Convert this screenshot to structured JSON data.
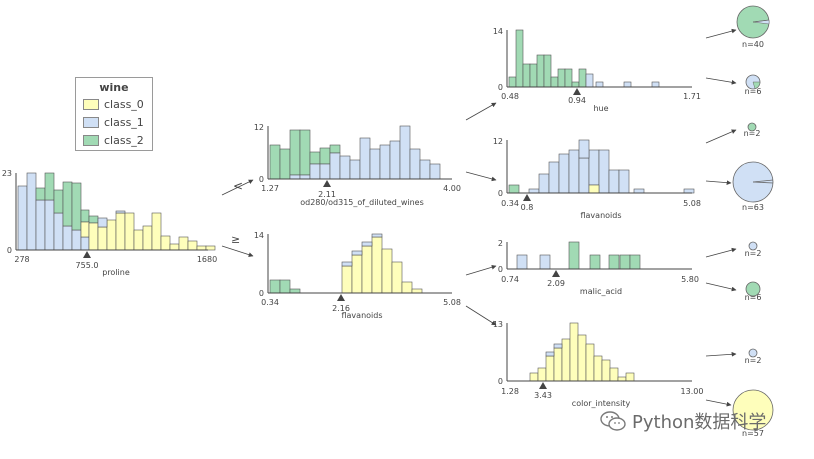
{
  "legend": {
    "title": "wine",
    "items": [
      {
        "label": "class_0",
        "color": "#fefebb"
      },
      {
        "label": "class_1",
        "color": "#d0e0f5"
      },
      {
        "label": "class_2",
        "color": "#a1dab4"
      }
    ]
  },
  "edges": {
    "less": "<",
    "ge": "≥"
  },
  "nodes": {
    "root": {
      "feature": "proline",
      "xmin": "278",
      "xmax": "1680",
      "split": "755.0",
      "ymax": "23",
      "ymin": "0"
    },
    "left": {
      "feature": "od280/od315_of_diluted_wines",
      "xmin": "1.27",
      "xmax": "4.00",
      "split": "2.11",
      "ymax": "12",
      "ymin": "0"
    },
    "right": {
      "feature": "flavanoids",
      "xmin": "0.34",
      "xmax": "5.08",
      "split": "2.16",
      "ymax": "14",
      "ymin": "0"
    },
    "ll": {
      "feature": "hue",
      "xmin": "0.48",
      "xmax": "1.71",
      "split": "0.94",
      "ymax": "14",
      "ymin": "0"
    },
    "lr": {
      "feature": "flavanoids",
      "xmin": "0.34",
      "xmax": "5.08",
      "split": "0.8",
      "ymax": "12",
      "ymin": "0"
    },
    "rl": {
      "feature": "malic_acid",
      "xmin": "0.74",
      "xmax": "5.80",
      "split": "2.09",
      "ymax": "2",
      "ymin": "0"
    },
    "rr": {
      "feature": "color_intensity",
      "xmin": "1.28",
      "xmax": "13.00",
      "split": "3.43",
      "ymax": "13",
      "ymin": "0"
    }
  },
  "leaves": [
    {
      "label": "n=40"
    },
    {
      "label": "n=6"
    },
    {
      "label": "n=2"
    },
    {
      "label": "n=63"
    },
    {
      "label": "n=2"
    },
    {
      "label": "n=6"
    },
    {
      "label": "n=2"
    },
    {
      "label": "n=57"
    }
  ],
  "watermark": "Python数据科学"
}
